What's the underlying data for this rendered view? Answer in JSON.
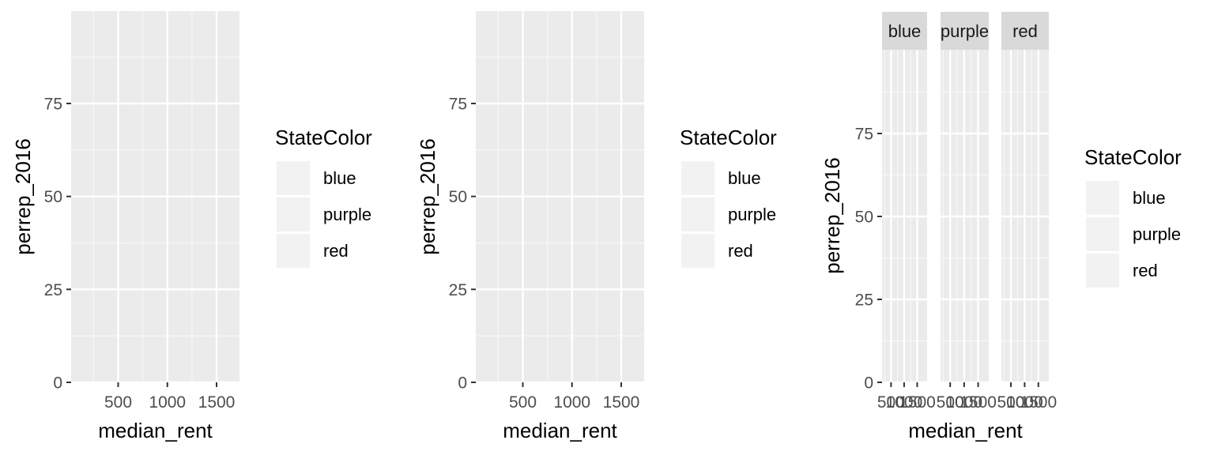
{
  "colors": {
    "panel_bg": "#ebebeb",
    "grid_major": "#ffffff",
    "grid_minor": "#f7f7f7",
    "strip_bg": "#d9d9d9",
    "legend_key": "#f2f2f2",
    "tick_text": "#4d4d4d",
    "tick_mark": "#333333"
  },
  "chart_data": [
    {
      "type": "scatter",
      "title": "",
      "xlabel": "median_rent",
      "ylabel": "perrep_2016",
      "x_ticks": [
        "500",
        "1000",
        "1500"
      ],
      "y_ticks": [
        "0",
        "25",
        "50",
        "75"
      ],
      "legend": {
        "title": "StateColor",
        "items": [
          "blue",
          "purple",
          "red"
        ]
      },
      "points": []
    },
    {
      "type": "scatter",
      "title": "",
      "xlabel": "median_rent",
      "ylabel": "perrep_2016",
      "x_ticks": [
        "500",
        "1000",
        "1500"
      ],
      "y_ticks": [
        "0",
        "25",
        "50",
        "75"
      ],
      "legend": {
        "title": "StateColor",
        "items": [
          "blue",
          "purple",
          "red"
        ]
      },
      "points": []
    },
    {
      "type": "scatter",
      "title": "",
      "xlabel": "median_rent",
      "ylabel": "perrep_2016",
      "facets": [
        "blue",
        "purple",
        "red"
      ],
      "x_ticks": [
        "500",
        "1000",
        "1500"
      ],
      "y_ticks": [
        "0",
        "25",
        "50",
        "75"
      ],
      "legend": {
        "title": "StateColor",
        "items": [
          "blue",
          "purple",
          "red"
        ]
      },
      "points": []
    }
  ]
}
